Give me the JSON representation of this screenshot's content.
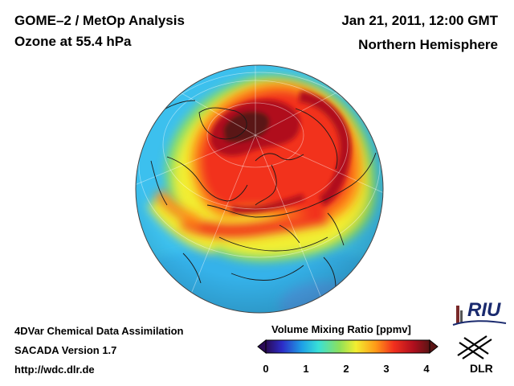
{
  "header": {
    "title_line1": "GOME–2 / MetOp Analysis",
    "title_line2": "Ozone at 55.4 hPa",
    "date": "Jan 21, 2011, 12:00 GMT",
    "region": "Northern Hemisphere"
  },
  "footer": {
    "line1": "4DVar Chemical Data Assimilation",
    "line2": "SACADA Version 1.7",
    "line3": "http://wdc.dlr.de"
  },
  "colorbar": {
    "title": "Volume Mixing Ratio [ppmv]",
    "ticks": [
      "0",
      "1",
      "2",
      "3",
      "4"
    ],
    "colors": [
      "#2a0a55",
      "#2c2cc8",
      "#1ea0e6",
      "#38e0d8",
      "#8ee05a",
      "#f2ee30",
      "#ff9a18",
      "#f2301e",
      "#b00f1e",
      "#5a1414"
    ]
  },
  "logos": {
    "riu": "RIU",
    "dlr": "DLR"
  }
}
